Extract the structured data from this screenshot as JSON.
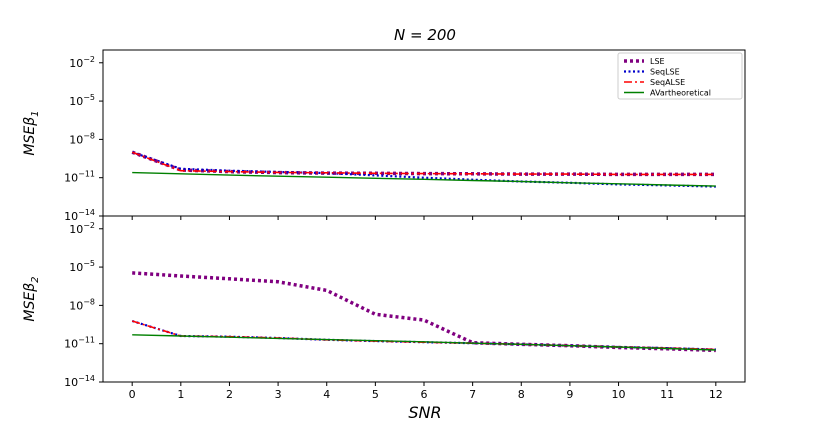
{
  "title": "N = 200",
  "xlabel": "SNR",
  "chart_data": [
    {
      "type": "line",
      "title": "N = 200",
      "ylabel": "MSEβ1",
      "yscale": "log",
      "ylim_exp": [
        -14,
        -1
      ],
      "ytick_exps": [
        -14,
        -11,
        -8,
        -5,
        -2
      ],
      "x": [
        0,
        1,
        2,
        3,
        4,
        5,
        6,
        7,
        8,
        9,
        10,
        11,
        12
      ],
      "series": [
        {
          "name": "LSE",
          "color": "#800080",
          "style": "dotted-thick",
          "values": [
            1e-09,
            4e-11,
            3e-11,
            2.5e-11,
            2.3e-11,
            2.2e-11,
            2.1e-11,
            2e-11,
            1.9e-11,
            1.9e-11,
            1.8e-11,
            1.8e-11,
            1.8e-11
          ]
        },
        {
          "name": "SeqLSE",
          "color": "#0000cc",
          "style": "dotted",
          "values": [
            1e-09,
            5e-11,
            3.5e-11,
            2.8e-11,
            2.3e-11,
            1.5e-11,
            1e-11,
            7e-12,
            5e-12,
            4e-12,
            3e-12,
            2.5e-12,
            2e-12
          ]
        },
        {
          "name": "SeqALSE",
          "color": "#ff0000",
          "style": "dashdot",
          "values": [
            1e-09,
            3.5e-11,
            3e-11,
            2.6e-11,
            2.4e-11,
            2.2e-11,
            2.1e-11,
            2e-11,
            1.9e-11,
            1.9e-11,
            1.8e-11,
            1.8e-11,
            1.8e-11
          ]
        },
        {
          "name": "AVartheoretical",
          "color": "#008000",
          "style": "solid",
          "values": [
            2.5e-11,
            2e-11,
            1.6e-11,
            1.3e-11,
            1.1e-11,
            9e-12,
            7.5e-12,
            6e-12,
            5e-12,
            4e-12,
            3.3e-12,
            2.7e-12,
            2.2e-12
          ]
        }
      ],
      "legend": "top-right"
    },
    {
      "type": "line",
      "ylabel": "MSEβ2",
      "xlabel": "SNR",
      "yscale": "log",
      "ylim_exp": [
        -14,
        -1
      ],
      "ytick_exps": [
        -14,
        -11,
        -8,
        -5,
        -2
      ],
      "x": [
        0,
        1,
        2,
        3,
        4,
        5,
        6,
        7,
        8,
        9,
        10,
        11,
        12
      ],
      "xticks": [
        "0",
        "1",
        "2",
        "3",
        "4",
        "5",
        "6",
        "7",
        "8",
        "9",
        "10",
        "11",
        "12"
      ],
      "series": [
        {
          "name": "LSE",
          "color": "#800080",
          "style": "dotted-thick",
          "values": [
            3.5e-06,
            2e-06,
            1.2e-06,
            7e-07,
            1.5e-07,
            2e-09,
            7e-10,
            1.2e-11,
            9e-12,
            7e-12,
            5e-12,
            4e-12,
            3e-12
          ]
        },
        {
          "name": "SeqLSE",
          "color": "#0000cc",
          "style": "dotted",
          "values": [
            6e-10,
            4e-11,
            3.5e-11,
            2.8e-11,
            2e-11,
            1.6e-11,
            1.3e-11,
            1.1e-11,
            9e-12,
            7e-12,
            5.5e-12,
            4.5e-12,
            3.5e-12
          ]
        },
        {
          "name": "SeqALSE",
          "color": "#ff0000",
          "style": "dashdot",
          "values": [
            6e-10,
            4e-11,
            3.5e-11,
            2.8e-11,
            2e-11,
            1.6e-11,
            1.3e-11,
            1.1e-11,
            9e-12,
            7e-12,
            5.5e-12,
            4.5e-12,
            3.5e-12
          ]
        },
        {
          "name": "AVartheoretical",
          "color": "#008000",
          "style": "solid",
          "values": [
            5e-11,
            4e-11,
            3.2e-11,
            2.6e-11,
            2.1e-11,
            1.7e-11,
            1.4e-11,
            1.1e-11,
            9e-12,
            7e-12,
            5.5e-12,
            4.2e-12,
            3.2e-12
          ]
        }
      ]
    }
  ]
}
